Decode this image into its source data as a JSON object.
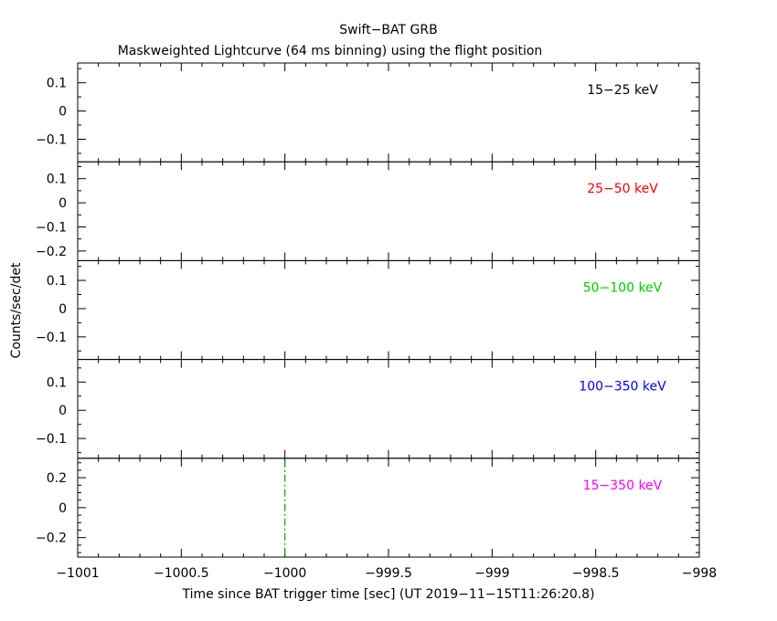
{
  "chart_data": {
    "type": "line",
    "title": "Swift−BAT GRB",
    "subtitle": "Maskweighted Lightcurve (64 ms binning) using the flight position",
    "xlabel": "Time since BAT trigger time [sec] (UT 2019−11−15T11:26:20.8)",
    "ylabel": "Counts/sec/det",
    "xlim": [
      -1001,
      -998
    ],
    "x_ticks": [
      -1001,
      -1000.5,
      -1000,
      -999.5,
      -999,
      -998.5,
      -998
    ],
    "x_tick_labels": [
      "−1001",
      "−1000.5",
      "−1000",
      "−999.5",
      "−999",
      "−998.5",
      "−998"
    ],
    "trigger_marker": {
      "x": -1000.0,
      "panel": "15−350 keV",
      "color": "#00aa00"
    },
    "panels": [
      {
        "label": "15−25 keV",
        "color": "#000000",
        "ylim": [
          -0.18,
          0.17
        ],
        "y_ticks": [
          0.1,
          0,
          -0.1
        ],
        "y_tick_labels": [
          "0.1",
          "0",
          "−0.1"
        ]
      },
      {
        "label": "25−50 keV",
        "color": "#ff0000",
        "ylim": [
          -0.24,
          0.17
        ],
        "y_ticks": [
          0.1,
          0,
          -0.1,
          -0.2
        ],
        "y_tick_labels": [
          "0.1",
          "0",
          "−0.1",
          "−0.2"
        ]
      },
      {
        "label": "50−100 keV",
        "color": "#00cc00",
        "ylim": [
          -0.18,
          0.17
        ],
        "y_ticks": [
          0.1,
          0,
          -0.1
        ],
        "y_tick_labels": [
          "0.1",
          "0",
          "−0.1"
        ]
      },
      {
        "label": "100−350 keV",
        "color": "#0000ff",
        "ylim": [
          -0.17,
          0.18
        ],
        "y_ticks": [
          0.1,
          0,
          -0.1
        ],
        "y_tick_labels": [
          "0.1",
          "0",
          "−0.1"
        ]
      },
      {
        "label": "15−350 keV",
        "color": "#ff00ff",
        "ylim": [
          -0.33,
          0.33
        ],
        "y_ticks": [
          0.2,
          0,
          -0.2
        ],
        "y_tick_labels": [
          "0.2",
          "0",
          "−0.2"
        ]
      }
    ]
  }
}
